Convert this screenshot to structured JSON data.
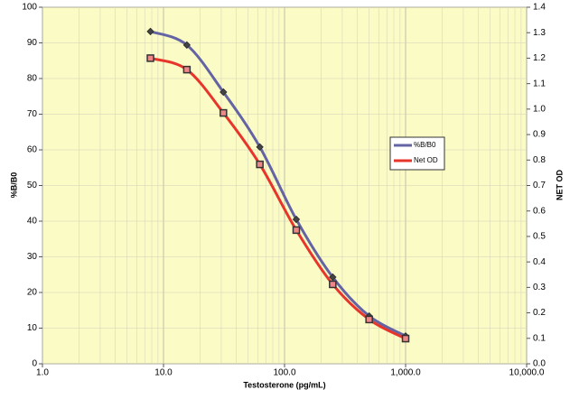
{
  "chart_data": {
    "type": "line",
    "x_label": "Testosterone (pg/mL)",
    "y_label": "%B/B0",
    "y2_label": "NET OD",
    "x": [
      7.8,
      15.6,
      31.25,
      62.5,
      125,
      250,
      500,
      1000
    ],
    "series": [
      {
        "name": "%B/B0",
        "color": "#6464a4",
        "marker": "diamond",
        "axis": "y",
        "values": [
          93.2,
          89.4,
          76.2,
          60.8,
          40.5,
          24.3,
          13.4,
          7.8
        ]
      },
      {
        "name": "Net OD",
        "color": "#e8352b",
        "marker": "square",
        "axis": "y2",
        "values": [
          1.2,
          1.155,
          0.985,
          0.783,
          0.525,
          0.312,
          0.174,
          0.099
        ]
      }
    ],
    "xscale": "log",
    "xlim": [
      1,
      10000
    ],
    "xticks": [
      {
        "value": 1,
        "label": "1.0"
      },
      {
        "value": 10,
        "label": "10.0"
      },
      {
        "value": 100,
        "label": "100.0"
      },
      {
        "value": 1000,
        "label": "1,000.0"
      },
      {
        "value": 10000,
        "label": "10,000.0"
      }
    ],
    "ylim": [
      0,
      100
    ],
    "yticks": [
      0,
      10,
      20,
      30,
      40,
      50,
      60,
      70,
      80,
      90,
      100
    ],
    "y2lim": [
      0,
      1.4
    ],
    "y2ticks": [
      {
        "value": 0,
        "label": "0.0"
      },
      {
        "value": 0.1,
        "label": "0.1"
      },
      {
        "value": 0.2,
        "label": "0.2"
      },
      {
        "value": 0.3,
        "label": "0.3"
      },
      {
        "value": 0.4,
        "label": "0.4"
      },
      {
        "value": 0.5,
        "label": "0.5"
      },
      {
        "value": 0.6,
        "label": "0.6"
      },
      {
        "value": 0.7,
        "label": "0.7"
      },
      {
        "value": 0.8,
        "label": "0.8"
      },
      {
        "value": 0.9,
        "label": "0.9"
      },
      {
        "value": 1,
        "label": "1.0"
      },
      {
        "value": 1.1,
        "label": "1.1"
      },
      {
        "value": 1.2,
        "label": "1.2"
      },
      {
        "value": 1.3,
        "label": "1.3"
      },
      {
        "value": 1.4,
        "label": "1.4"
      }
    ],
    "grid": true,
    "legend": "right"
  }
}
